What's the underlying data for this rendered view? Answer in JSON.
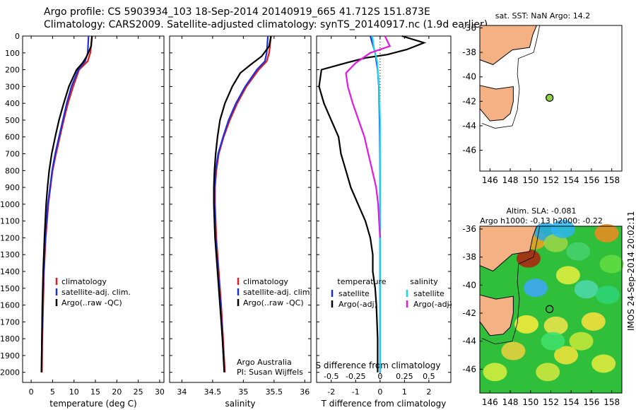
{
  "header": {
    "line1": "Argo profile: CS 5903934_103 18-Sep-2014 20140919_665 41.712S 151.873E",
    "line2": "Climatology: CARS2009. Satellite-adjusted climatology: synTS_20140917.nc (1.9d earlier)"
  },
  "colors": {
    "climatology": "#e41a1c",
    "satellite": "#1f2fd8",
    "argo": "#000000",
    "salinity_satellite": "#18d8e8",
    "salinity_argo": "#e418e0",
    "land": "#f4b183",
    "float_marker": "#8ed143"
  },
  "chart_data": [
    {
      "type": "line",
      "id": "temperature",
      "xlabel": "temperature (deg C)",
      "xticks": [
        "0",
        "5",
        "10",
        "15",
        "20",
        "25",
        "30"
      ],
      "xlim": [
        -2,
        31
      ],
      "ylim": [
        2060,
        0
      ],
      "yticks": [
        "0",
        "100",
        "200",
        "300",
        "400",
        "500",
        "600",
        "700",
        "800",
        "900",
        "1000",
        "1100",
        "1200",
        "1300",
        "1400",
        "1500",
        "1600",
        "1700",
        "1800",
        "1900",
        "2000"
      ],
      "legend": [
        "climatology",
        "satellite-adj. clim.",
        "Argo(..raw -QC)"
      ],
      "series": [
        {
          "name": "climatology",
          "depth": [
            0,
            100,
            150,
            200,
            300,
            400,
            500,
            600,
            700,
            800,
            1000,
            1200,
            1400,
            1600,
            1800,
            2000
          ],
          "values": [
            14.2,
            13.8,
            13.2,
            11.2,
            9.8,
            8.6,
            7.6,
            6.7,
            5.8,
            5.0,
            4.0,
            3.4,
            3.0,
            2.8,
            2.6,
            2.5
          ]
        },
        {
          "name": "satellite-adj. clim.",
          "depth": [
            0,
            100,
            150,
            200,
            300,
            400,
            500,
            600,
            700,
            800,
            1000,
            1200,
            1400,
            1600,
            1800,
            2000
          ],
          "values": [
            13.4,
            13.2,
            12.6,
            11.0,
            9.4,
            8.3,
            7.4,
            6.5,
            5.6,
            4.9,
            3.9,
            3.3,
            2.9,
            2.7,
            2.5,
            2.4
          ]
        },
        {
          "name": "Argo(..raw -QC)",
          "depth": [
            0,
            60,
            120,
            160,
            200,
            300,
            400,
            500,
            600,
            700,
            800,
            900,
            1000,
            1200,
            1400,
            1600,
            1800,
            2000
          ],
          "values": [
            14.2,
            14.0,
            13.0,
            12.0,
            10.6,
            8.8,
            7.6,
            6.5,
            5.6,
            4.8,
            4.2,
            3.8,
            3.5,
            3.1,
            2.8,
            2.6,
            2.5,
            2.4
          ]
        }
      ]
    },
    {
      "type": "line",
      "id": "salinity",
      "xlabel": "salinity",
      "xticks": [
        "34",
        "34.5",
        "35",
        "35.5",
        "36"
      ],
      "xlim": [
        33.8,
        36.1
      ],
      "ylim": [
        2060,
        0
      ],
      "legend": [
        "climatology",
        "satellite-adj. clim.",
        "Argo(..raw -QC)"
      ],
      "annotation": [
        "Argo Australia",
        "PI: Susan Wijffels"
      ],
      "series": [
        {
          "name": "climatology",
          "depth": [
            0,
            100,
            150,
            200,
            300,
            400,
            500,
            600,
            700,
            800,
            900,
            1000,
            1200,
            1400,
            1600,
            1800,
            2000
          ],
          "values": [
            35.45,
            35.42,
            35.38,
            35.25,
            35.05,
            34.9,
            34.78,
            34.68,
            34.6,
            34.56,
            34.54,
            34.54,
            34.56,
            34.6,
            34.64,
            34.67,
            34.7
          ]
        },
        {
          "name": "satellite-adj. clim.",
          "depth": [
            0,
            100,
            150,
            200,
            300,
            400,
            500,
            600,
            700,
            800,
            900,
            1000,
            1200,
            1400,
            1600,
            1800,
            2000
          ],
          "values": [
            35.4,
            35.38,
            35.35,
            35.22,
            35.03,
            34.88,
            34.76,
            34.67,
            34.59,
            34.55,
            34.53,
            34.53,
            34.55,
            34.59,
            34.63,
            34.66,
            34.69
          ]
        },
        {
          "name": "Argo(..raw -QC)",
          "depth": [
            0,
            60,
            120,
            170,
            220,
            300,
            400,
            500,
            600,
            700,
            800,
            900,
            1000,
            1200,
            1400,
            1600,
            1800,
            2000
          ],
          "values": [
            35.45,
            35.42,
            35.3,
            35.12,
            34.95,
            34.82,
            34.7,
            34.62,
            34.58,
            34.55,
            34.53,
            34.52,
            34.52,
            34.54,
            34.58,
            34.62,
            34.66,
            34.69
          ]
        }
      ]
    },
    {
      "type": "line",
      "id": "difference",
      "xlabel": "T difference from climatology",
      "xlabel_top": "S difference from climatology",
      "xticks": [
        "-2",
        "-1",
        "0",
        "1",
        "2"
      ],
      "xlim": [
        -2.6,
        2.9
      ],
      "xticks_top": [
        "-0.5",
        "-0.25",
        "0",
        "0.25",
        "0.5"
      ],
      "ylim": [
        2060,
        0
      ],
      "legend_titles": [
        "temperature",
        "salinity"
      ],
      "legend": [
        "satellite",
        "Argo(-adj)",
        "satellite",
        "Argo(-adj)"
      ],
      "series": [
        {
          "name": "temperature satellite",
          "depth": [
            0,
            50,
            100,
            150,
            200,
            300,
            500,
            800,
            1000,
            1500,
            2000
          ],
          "values": [
            -0.4,
            -0.3,
            -0.2,
            -0.15,
            -0.1,
            -0.05,
            -0.02,
            0,
            0,
            0,
            0
          ]
        },
        {
          "name": "temperature Argo(-adj)",
          "depth": [
            0,
            40,
            80,
            110,
            130,
            160,
            200,
            300,
            400,
            500,
            600,
            700,
            800,
            900,
            1000,
            1100,
            1200,
            1300,
            1400,
            1500,
            1600,
            1800,
            2000
          ],
          "values": [
            0.9,
            1.8,
            1.1,
            0.3,
            -0.6,
            -1.4,
            -2.4,
            -2.5,
            -2.3,
            -2.0,
            -1.7,
            -1.6,
            -1.4,
            -1.2,
            -0.9,
            -0.6,
            -0.4,
            -0.3,
            -0.3,
            -0.2,
            -0.15,
            -0.1,
            -0.1
          ]
        },
        {
          "name": "salinity satellite",
          "depth": [
            0,
            80,
            150,
            300,
            500,
            700,
            800,
            900,
            1000,
            1500,
            2000
          ],
          "values": [
            -0.08,
            -0.06,
            -0.03,
            -0.01,
            0,
            0,
            0,
            0,
            0,
            0,
            0
          ]
        },
        {
          "name": "salinity Argo(-adj)",
          "depth": [
            0,
            60,
            100,
            160,
            220,
            300,
            400,
            500,
            600,
            700,
            800,
            900,
            1000,
            1100,
            1200
          ],
          "values": [
            0.05,
            0.1,
            -0.1,
            -0.25,
            -0.35,
            -0.33,
            -0.28,
            -0.22,
            -0.16,
            -0.12,
            -0.08,
            -0.04,
            -0.02,
            -0.01,
            0
          ]
        }
      ]
    },
    {
      "type": "scatter",
      "id": "sst-map",
      "title": "sat. SST: NaN Argo: 14.2",
      "xticks": [
        "146",
        "148",
        "150",
        "152",
        "154",
        "156",
        "158"
      ],
      "yticks": [
        "-36",
        "-38",
        "-40",
        "-42",
        "-44",
        "-46"
      ],
      "xlim": [
        145,
        159
      ],
      "ylim": [
        -47.7,
        -35.8
      ],
      "points": [
        {
          "x": 151.873,
          "y": -41.712
        }
      ]
    },
    {
      "type": "heatmap",
      "id": "sla-map",
      "title": [
        "Altim. SLA: -0.081",
        "Argo h1000: -0.13 h2000: -0.22"
      ],
      "xticks": [
        "146",
        "148",
        "150",
        "152",
        "154",
        "156",
        "158"
      ],
      "yticks": [
        "-36",
        "-38",
        "-40",
        "-42",
        "-44",
        "-46"
      ],
      "xlim": [
        145,
        159
      ],
      "ylim": [
        -47.7,
        -35.8
      ],
      "points": [
        {
          "x": 151.873,
          "y": -41.712
        }
      ]
    }
  ],
  "footer_stamp": "IMOS 24-Sep-2014 20:02:11"
}
